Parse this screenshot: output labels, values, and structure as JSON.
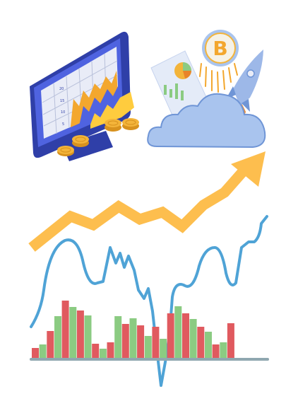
{
  "monitor_tick_labels": [
    "20",
    "15",
    "10",
    "5"
  ],
  "coin_symbol": "B",
  "colors": {
    "navy": "#2F3FA8",
    "blue": "#4F63E0",
    "screen": "#E9ECF7",
    "gold": "#F3B43A",
    "gold_dark": "#D8921E",
    "orange_arrow": "#FDBE4E",
    "cloud": "#A9C4EE",
    "cloud_stroke": "#6F95D6",
    "line_blue": "#4FA3D6",
    "bar_red": "#E05A5F",
    "bar_green": "#8BCB82",
    "baseline": "#8FA7B0",
    "rocket": "#9DB8E8"
  },
  "bars": [
    {
      "value": 0.14,
      "trend": "down"
    },
    {
      "value": 0.19,
      "trend": "up"
    },
    {
      "value": 0.38,
      "trend": "down"
    },
    {
      "value": 0.59,
      "trend": "up"
    },
    {
      "value": 0.81,
      "trend": "down"
    },
    {
      "value": 0.72,
      "trend": "up"
    },
    {
      "value": 0.67,
      "trend": "down"
    },
    {
      "value": 0.6,
      "trend": "up"
    },
    {
      "value": 0.2,
      "trend": "down"
    },
    {
      "value": 0.13,
      "trend": "up"
    },
    {
      "value": 0.22,
      "trend": "down"
    },
    {
      "value": 0.59,
      "trend": "up"
    },
    {
      "value": 0.48,
      "trend": "down"
    },
    {
      "value": 0.56,
      "trend": "up"
    },
    {
      "value": 0.46,
      "trend": "down"
    },
    {
      "value": 0.31,
      "trend": "up"
    },
    {
      "value": 0.44,
      "trend": "down"
    },
    {
      "value": 0.27,
      "trend": "up"
    },
    {
      "value": 0.63,
      "trend": "down"
    },
    {
      "value": 0.73,
      "trend": "up"
    },
    {
      "value": 0.63,
      "trend": "down"
    },
    {
      "value": 0.55,
      "trend": "up"
    },
    {
      "value": 0.44,
      "trend": "down"
    },
    {
      "value": 0.37,
      "trend": "up"
    },
    {
      "value": 0.19,
      "trend": "down"
    },
    {
      "value": 0.22,
      "trend": "up"
    },
    {
      "value": 0.49,
      "trend": "down"
    }
  ]
}
